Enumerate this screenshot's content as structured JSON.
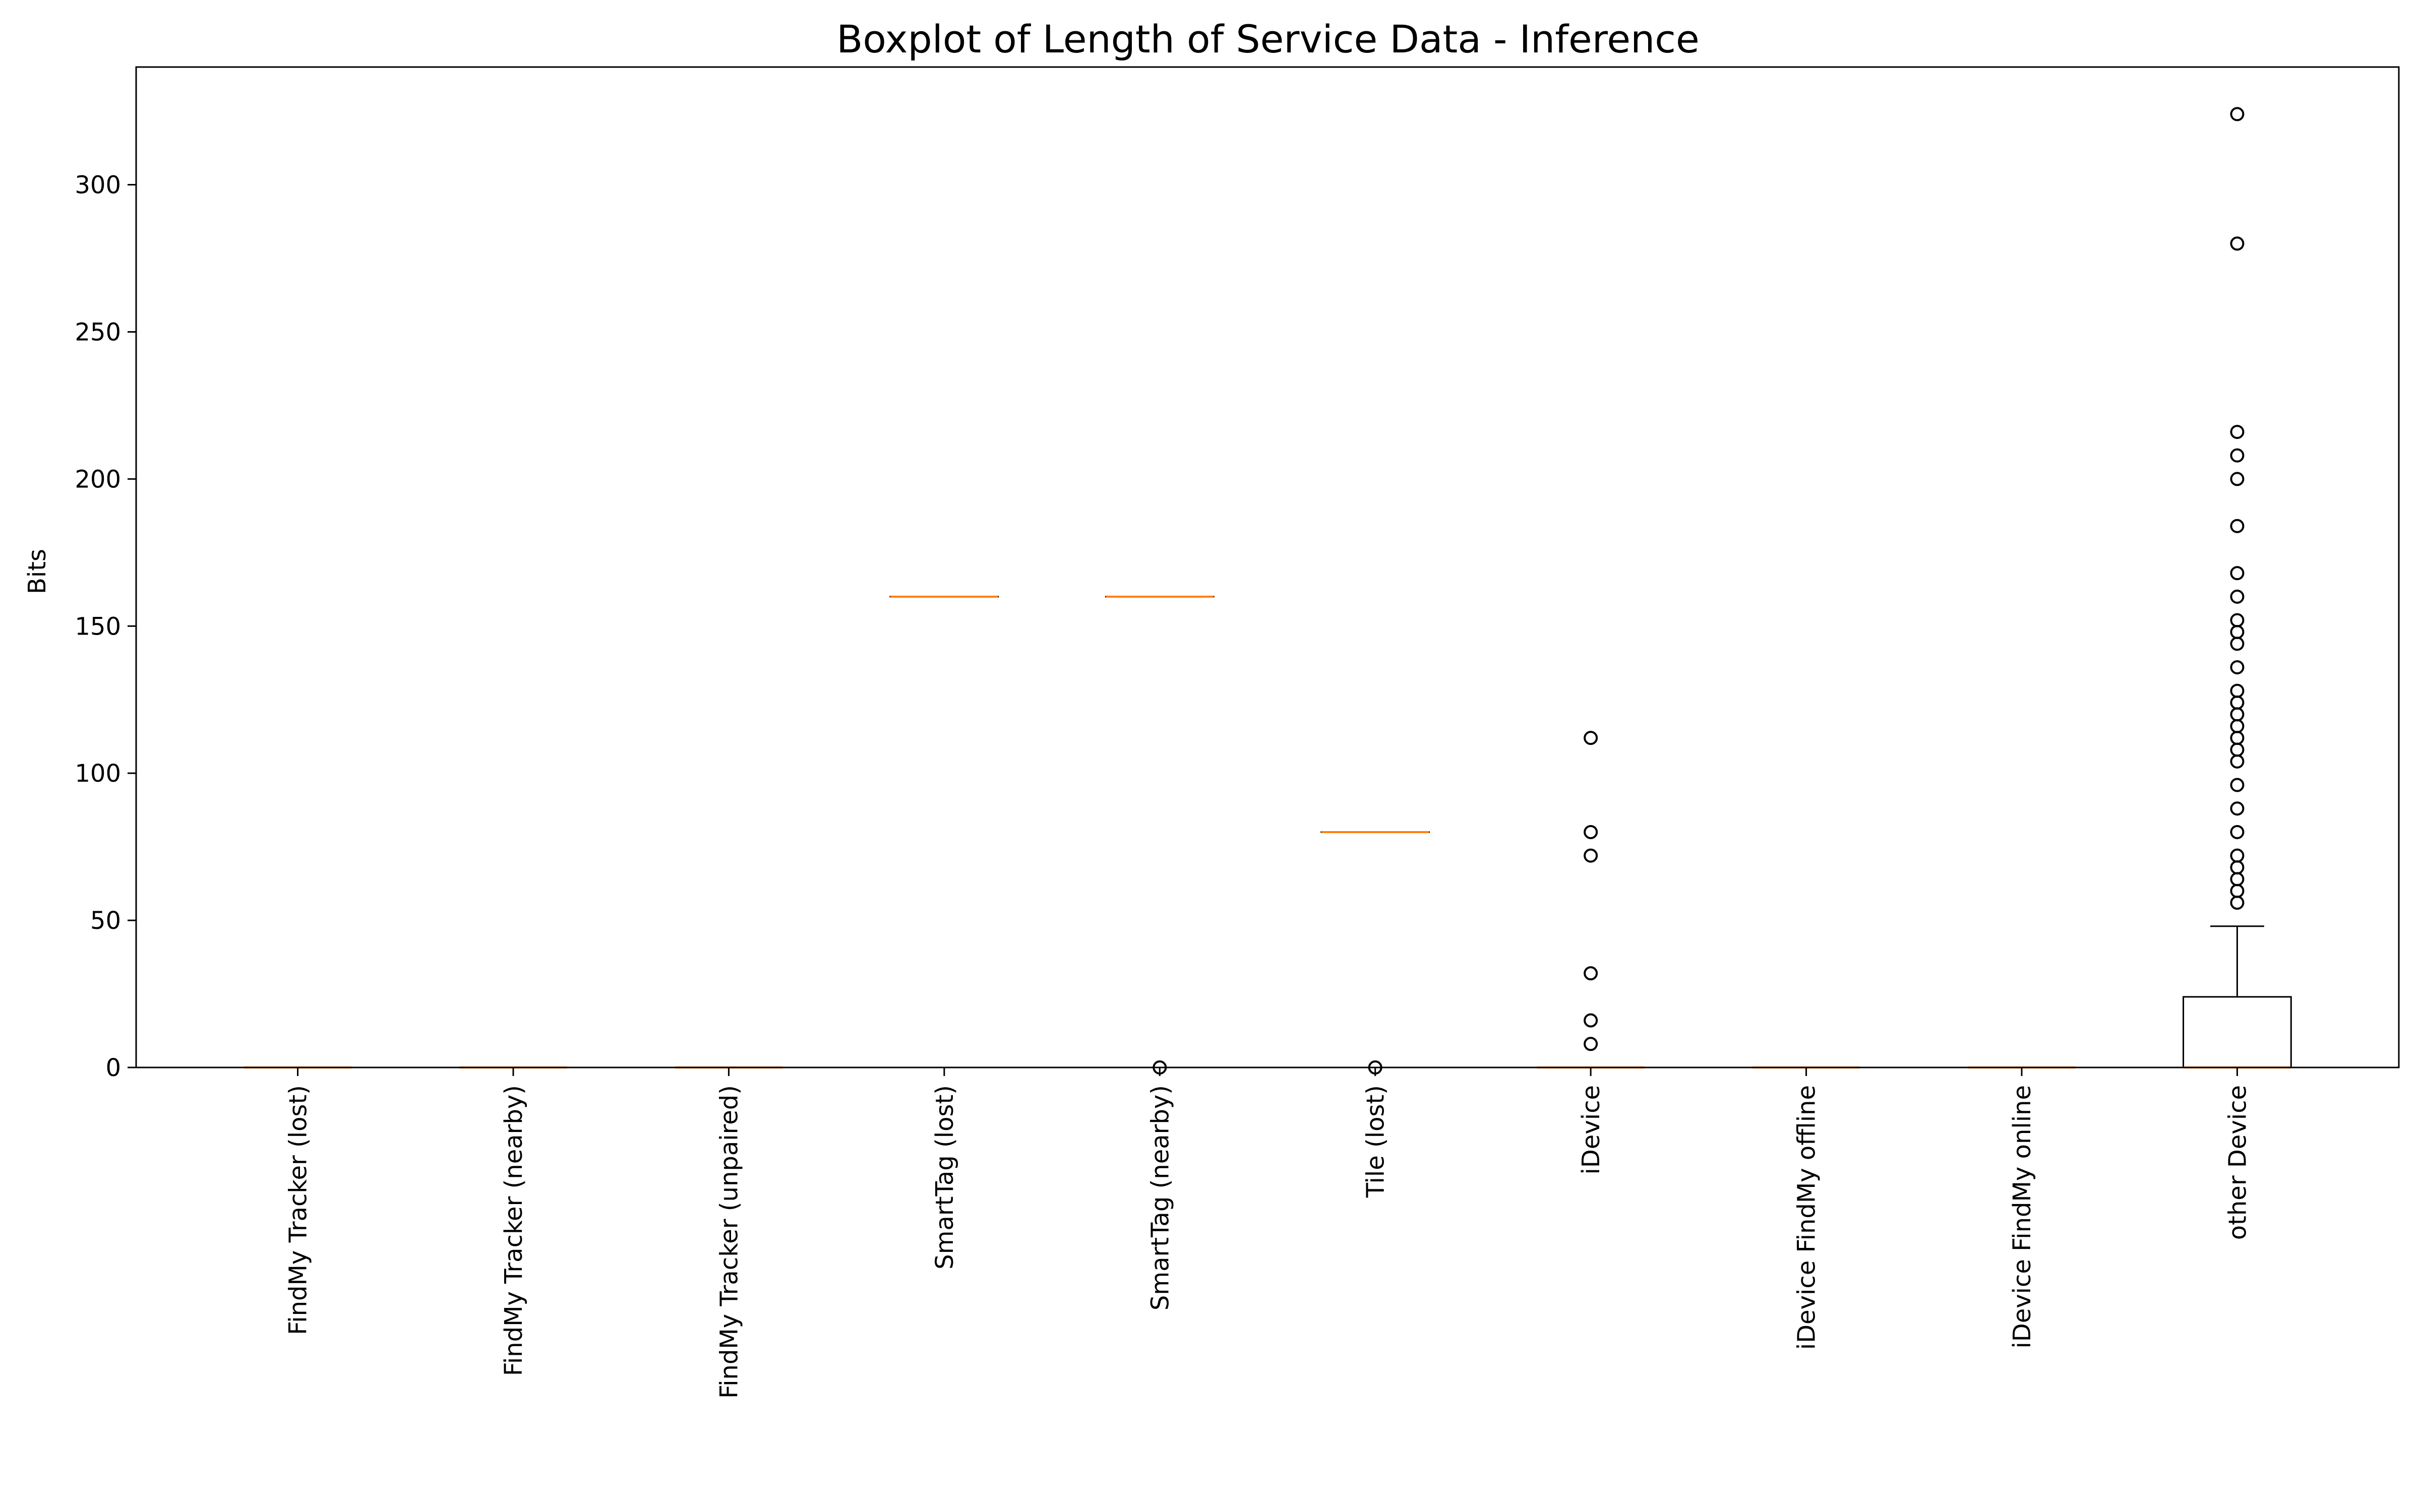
{
  "chart_data": {
    "type": "boxplot",
    "title": "Boxplot of Length of Service Data - Inference",
    "xlabel": "",
    "ylabel": "Bits",
    "ylim": [
      0,
      340
    ],
    "yticks": [
      0,
      50,
      100,
      150,
      200,
      250,
      300
    ],
    "grid": false,
    "categories": [
      "FindMy Tracker (lost)",
      "FindMy Tracker (nearby)",
      "FindMy Tracker (unpaired)",
      "SmartTag (lost)",
      "SmartTag (nearby)",
      "Tile (lost)",
      "iDevice",
      "iDevice FindMy offline",
      "iDevice FindMy online",
      "other Device"
    ],
    "boxes": [
      {
        "q1": 0,
        "median": 0,
        "q3": 0,
        "whisker_low": 0,
        "whisker_high": 0,
        "outliers": []
      },
      {
        "q1": 0,
        "median": 0,
        "q3": 0,
        "whisker_low": 0,
        "whisker_high": 0,
        "outliers": []
      },
      {
        "q1": 0,
        "median": 0,
        "q3": 0,
        "whisker_low": 0,
        "whisker_high": 0,
        "outliers": []
      },
      {
        "q1": 160,
        "median": 160,
        "q3": 160,
        "whisker_low": 160,
        "whisker_high": 160,
        "outliers": []
      },
      {
        "q1": 160,
        "median": 160,
        "q3": 160,
        "whisker_low": 160,
        "whisker_high": 160,
        "outliers": [
          0
        ]
      },
      {
        "q1": 80,
        "median": 80,
        "q3": 80,
        "whisker_low": 80,
        "whisker_high": 80,
        "outliers": [
          0
        ]
      },
      {
        "q1": 0,
        "median": 0,
        "q3": 0,
        "whisker_low": 0,
        "whisker_high": 0,
        "outliers": [
          8,
          16,
          32,
          72,
          80,
          112
        ]
      },
      {
        "q1": 0,
        "median": 0,
        "q3": 0,
        "whisker_low": 0,
        "whisker_high": 0,
        "outliers": []
      },
      {
        "q1": 0,
        "median": 0,
        "q3": 0,
        "whisker_low": 0,
        "whisker_high": 0,
        "outliers": []
      },
      {
        "q1": 0,
        "median": 0,
        "q3": 24,
        "whisker_low": 0,
        "whisker_high": 48,
        "outliers": [
          56,
          60,
          64,
          68,
          72,
          80,
          88,
          96,
          104,
          108,
          112,
          116,
          120,
          124,
          128,
          136,
          144,
          148,
          152,
          160,
          168,
          184,
          200,
          208,
          216,
          280,
          324
        ]
      }
    ],
    "colors": {
      "median": "#ff7f0e",
      "box": "#000000",
      "outlier": "#000000",
      "background": "#ffffff"
    }
  }
}
